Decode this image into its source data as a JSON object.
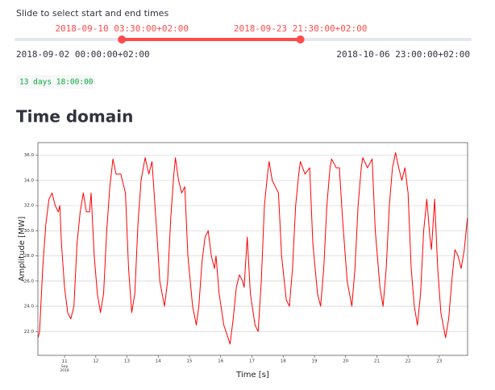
{
  "slider": {
    "label": "Slide to select start and end times",
    "start": "2018-09-10 03:30:00+02:00",
    "end": "2018-09-23 21:30:00+02:00",
    "min": "2018-09-02 00:00:00+02:00",
    "max": "2018-10-06 23:00:00+02:00"
  },
  "duration": "13 days 18:00:00",
  "heading": "Time domain",
  "chart_data": {
    "type": "line",
    "xlabel": "Time [s]",
    "ylabel": "Amplitude [MW]",
    "color": "#ff0000",
    "x": [
      10.15,
      10.2,
      10.3,
      10.4,
      10.5,
      10.6,
      10.7,
      10.8,
      10.85,
      10.9,
      11.0,
      11.1,
      11.2,
      11.3,
      11.4,
      11.5,
      11.6,
      11.7,
      11.8,
      11.85,
      11.95,
      12.05,
      12.15,
      12.25,
      12.35,
      12.45,
      12.55,
      12.65,
      12.8,
      12.95,
      13.05,
      13.15,
      13.25,
      13.35,
      13.45,
      13.58,
      13.7,
      13.8,
      13.95,
      14.05,
      14.2,
      14.3,
      14.4,
      14.5,
      14.55,
      14.65,
      14.75,
      14.85,
      14.95,
      15.1,
      15.22,
      15.3,
      15.4,
      15.5,
      15.6,
      15.7,
      15.8,
      15.85,
      15.95,
      16.1,
      16.3,
      16.4,
      16.5,
      16.6,
      16.7,
      16.75,
      16.85,
      16.95,
      17.1,
      17.2,
      17.3,
      17.4,
      17.5,
      17.55,
      17.65,
      17.75,
      17.85,
      17.95,
      18.1,
      18.2,
      18.3,
      18.4,
      18.5,
      18.55,
      18.7,
      18.85,
      18.95,
      19.1,
      19.2,
      19.3,
      19.4,
      19.5,
      19.55,
      19.7,
      19.8,
      19.9,
      20.05,
      20.2,
      20.3,
      20.4,
      20.5,
      20.55,
      20.7,
      20.85,
      20.95,
      21.1,
      21.2,
      21.3,
      21.4,
      21.5,
      21.6,
      21.7,
      21.8,
      21.9,
      22.0,
      22.1,
      22.2,
      22.3,
      22.4,
      22.5,
      22.6,
      22.7,
      22.75,
      22.85,
      22.95,
      23.05,
      23.2,
      23.3,
      23.4,
      23.5,
      23.6,
      23.7,
      23.8,
      23.9
    ],
    "values": [
      21.5,
      22,
      27,
      30.5,
      32.5,
      33,
      32,
      31.5,
      32,
      29,
      25.5,
      23.5,
      23,
      24,
      29,
      31.5,
      33,
      31.5,
      31.5,
      33,
      28,
      25,
      23.5,
      25,
      30,
      33.5,
      35.7,
      34.5,
      34.5,
      33,
      27,
      23.5,
      25,
      30.5,
      34,
      35.8,
      34.5,
      35.5,
      30,
      26,
      24,
      26,
      31,
      34.5,
      35.8,
      34,
      33,
      33.5,
      28,
      24,
      22.5,
      24,
      27.5,
      29.5,
      30,
      28,
      27,
      28,
      25,
      22.5,
      21,
      23,
      25.5,
      26.5,
      26,
      25.5,
      29.5,
      25,
      22.5,
      22,
      26,
      32,
      34.5,
      35.5,
      34,
      33.5,
      33,
      28,
      24.5,
      24,
      27,
      32,
      34.5,
      35.5,
      34.5,
      35,
      29,
      25,
      24,
      27,
      32,
      35,
      35.7,
      35,
      35,
      31,
      26,
      24,
      27,
      32,
      35,
      35.8,
      35,
      35.7,
      30,
      25.5,
      24,
      27,
      32,
      35,
      36.2,
      35,
      34,
      35,
      33,
      27,
      24,
      22.5,
      25,
      30,
      32.5,
      29.5,
      28.5,
      32.5,
      27,
      23.5,
      21.5,
      23,
      26,
      28.5,
      28,
      27,
      28.5,
      31
    ],
    "xlim": [
      10.146,
      23.906
    ],
    "ylim": [
      20.1,
      37.0
    ],
    "xticks": [
      {
        "value": 11,
        "label": "11\nSep\n2018"
      },
      12,
      13,
      14,
      15,
      16,
      17,
      18,
      19,
      20,
      21,
      22,
      23
    ],
    "yticks": [
      {
        "value": 22,
        "label": "22.0"
      },
      {
        "value": 24,
        "label": "24.0"
      },
      {
        "value": 26,
        "label": "26.0"
      },
      {
        "value": 28,
        "label": "28.0"
      },
      {
        "value": 30,
        "label": "30.0"
      },
      {
        "value": 32,
        "label": "32.0"
      },
      {
        "value": 34,
        "label": "34.0"
      },
      {
        "value": 36,
        "label": "36.0"
      }
    ],
    "grid": true
  }
}
